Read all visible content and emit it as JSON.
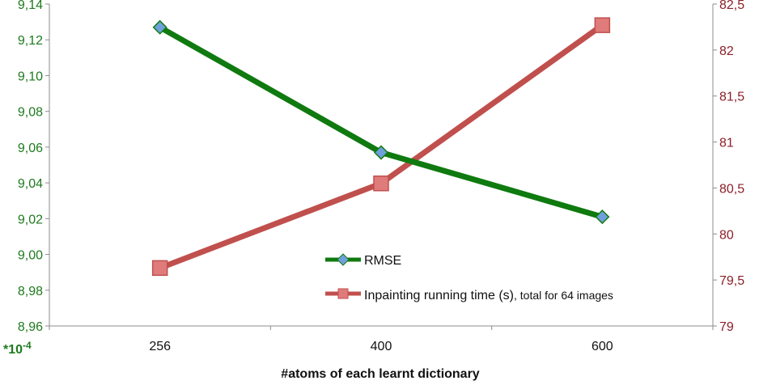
{
  "chart_data": {
    "type": "line",
    "xlabel": "#atoms of each learnt dictionary",
    "x": [
      256,
      400,
      600
    ],
    "left_axis": {
      "ylim": [
        8.96,
        9.14
      ],
      "ticks": [
        "9,14",
        "9,12",
        "9,10",
        "9,08",
        "9,06",
        "9,04",
        "9,02",
        "9,00",
        "8,98",
        "8,96"
      ],
      "unit_label": "*10-4",
      "color": "#1e7a1e"
    },
    "right_axis": {
      "ylim": [
        79,
        82.5
      ],
      "ticks": [
        "82,5",
        "82",
        "81,5",
        "81",
        "80,5",
        "80",
        "79,5",
        "79"
      ],
      "color": "#8b1f2a"
    },
    "series": [
      {
        "name": "RMSE",
        "axis": "left",
        "values": [
          9.127,
          9.057,
          9.021
        ],
        "line_color": "#0f7a0f",
        "marker": "diamond",
        "marker_color": "#6fa0dc"
      },
      {
        "name": "Inpainting running time (s)",
        "name_note": ", total for 64 images",
        "axis": "right",
        "values": [
          79.63,
          80.55,
          82.27
        ],
        "line_color": "#c0504d",
        "marker": "square",
        "marker_color": "#e07b7b"
      }
    ],
    "grid": false,
    "legend_position": "center-bottom"
  }
}
